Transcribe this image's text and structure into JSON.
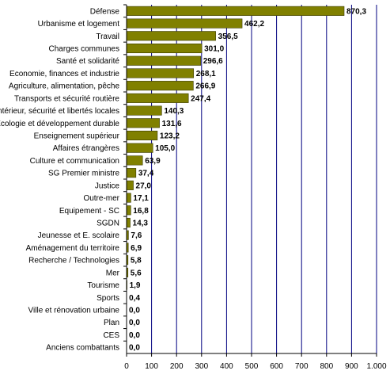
{
  "chart_data": {
    "type": "bar",
    "orientation": "horizontal",
    "categories": [
      "Défense",
      "Urbanisme et logement",
      "Travail",
      "Charges communes",
      "Santé et solidarité",
      "Economie, finances et industrie",
      "Agriculture, alimentation, pêche",
      "Transports et sécurité routière",
      "Intérieur, sécurité et libertés locales",
      "Écologie et développement durable",
      "Enseignement supérieur",
      "Affaires étrangères",
      "Culture et communication",
      "SG Premier ministre",
      "Justice",
      "Outre-mer",
      "Equipement - SC",
      "SGDN",
      "Jeunesse et E. scolaire",
      "Aménagement du territoire",
      "Recherche / Technologies",
      "Mer",
      "Tourisme",
      "Sports",
      "Ville et rénovation urbaine",
      "Plan",
      "CES",
      "Anciens combattants"
    ],
    "values": [
      870.3,
      462.2,
      356.5,
      301.0,
      296.6,
      268.1,
      266.9,
      247.4,
      140.3,
      131.6,
      123.2,
      105.0,
      63.9,
      37.4,
      27.0,
      17.1,
      16.8,
      14.3,
      7.6,
      6.9,
      5.8,
      5.6,
      1.9,
      0.4,
      0.0,
      0.0,
      0.0,
      0.0
    ],
    "value_labels": [
      "870,3",
      "462,2",
      "356,5",
      "301,0",
      "296,6",
      "268,1",
      "266,9",
      "247,4",
      "140,3",
      "131,6",
      "123,2",
      "105,0",
      "63,9",
      "37,4",
      "27,0",
      "17,1",
      "16,8",
      "14,3",
      "7,6",
      "6,9",
      "5,8",
      "5,6",
      "1,9",
      "0,4",
      "0,0",
      "0,0",
      "0,0",
      "0,0"
    ],
    "xlim": [
      0,
      1000
    ],
    "x_ticks": [
      0,
      100,
      200,
      300,
      400,
      500,
      600,
      700,
      800,
      900,
      1000
    ],
    "x_tick_labels": [
      "0",
      "100",
      "200",
      "300",
      "400",
      "500",
      "600",
      "700",
      "800",
      "900",
      "1.000"
    ],
    "grid": "vertical",
    "legend": "none",
    "title": "",
    "xlabel": "",
    "ylabel": "",
    "colors": {
      "bar_fill": "#808000",
      "bar_stroke": "#3a3a00",
      "grid": "#000080",
      "axis": "#000000"
    }
  }
}
